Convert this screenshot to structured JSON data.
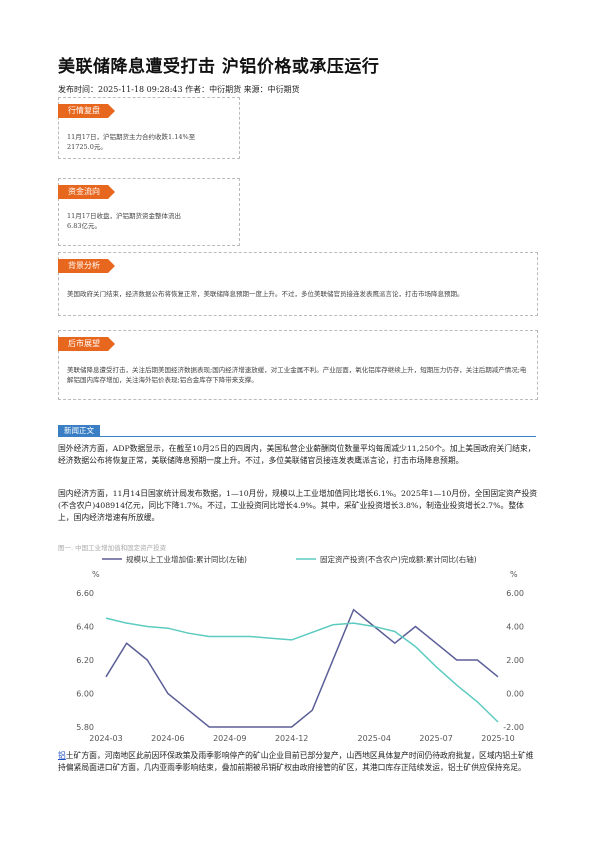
{
  "header": {
    "title": "美联储降息遭受打击 沪铝价格或承压运行",
    "meta": "发布时间：2025-11-18 09:28:43 作者：中衍期货 来源：中衍期货"
  },
  "sections": [
    {
      "tag": "行情复盘",
      "text": "11月17日，沪铝期货主力合约收跌1.14%至21725.0元。"
    },
    {
      "tag": "资金流向",
      "text": "11月17日收盘，沪铝期货资金整体流出6.83亿元。"
    },
    {
      "tag": "背景分析",
      "text": "美国政府关门结束，经济数据公布将恢复正常，美联储降息预期一度上升。不过，多位美联储官员接连发表鹰派言论，打击市场降息预期。"
    },
    {
      "tag": "后市展望",
      "text": "美联储降息遭受打击，关注后期美国经济数据表现;国内经济增速放缓，对工业金属不利。产业层面，氧化铝库存继续上升，短期压力仍存，关注后期减产情况;电解铝国内库存增加，关注海外铝价表现;铝合金库存下降带来支撑。"
    }
  ],
  "news": {
    "tag": "新闻正文",
    "p1": "国外经济方面，ADP数据显示，在截至10月25日的四周内，美国私营企业薪酬岗位数量平均每周减少11,250个。加上美国政府关门结束，经济数据公布将恢复正常，美联储降息预期一度上升。不过，多位美联储官员接连发表鹰派言论，打击市场降息预期。",
    "p2": "国内经济方面，11月14日国家统计局发布数据，1—10月份，规模以上工业增加值同比增长6.1%。2025年1—10月份，全国固定资产投资(不含农户)408914亿元，同比下降1.7%。不过，工业投资同比增长4.9%。其中，采矿业投资增长3.8%，制造业投资增长2.7%。整体上，国内经济增速有所放缓。",
    "chart_caption": "图一. 中国工业增加值和固定资产投资",
    "p3_link": "铝",
    "p3": "土矿方面，河南地区此前因环保政策及雨季影响停产的矿山企业目前已部分复产，山西地区具体复产时间仍待政府批复，区域内铝土矿维持偏紧局面进口矿方面，几内亚雨季影响结束，叠加前期被吊销矿权由政府接管的矿区，其港口库存正陆续发运，铝土矿供应保持充足。"
  },
  "chart_data": {
    "type": "line",
    "title": "",
    "x": [
      "2024-03",
      "2024-04",
      "2024-05",
      "2024-06",
      "2024-07",
      "2024-08",
      "2024-09",
      "2024-10",
      "2024-11",
      "2024-12",
      "2025-01",
      "2025-02",
      "2025-03",
      "2025-04",
      "2025-05",
      "2025-06",
      "2025-07",
      "2025-08",
      "2025-09",
      "2025-10"
    ],
    "x_ticks": [
      "2024-03",
      "2024-06",
      "2024-09",
      "2024-12",
      "2025-04",
      "2025-07",
      "2025-10"
    ],
    "series": [
      {
        "name": "规模以上工业增加值:累计同比(左轴)",
        "axis": "left",
        "color": "#5b5e97",
        "values": [
          6.1,
          6.3,
          6.2,
          6.0,
          5.9,
          5.8,
          5.8,
          5.8,
          5.8,
          5.8,
          5.9,
          null,
          6.5,
          6.4,
          6.3,
          6.4,
          6.3,
          6.2,
          6.2,
          6.1
        ]
      },
      {
        "name": "固定资产投资(不含农户)完成额:累计同比(右轴)",
        "axis": "right",
        "color": "#5ccbc0",
        "values": [
          4.5,
          4.2,
          4.0,
          3.9,
          3.6,
          3.4,
          3.4,
          3.4,
          3.3,
          3.2,
          null,
          4.1,
          4.2,
          4.0,
          3.7,
          2.8,
          1.6,
          0.5,
          -0.5,
          -1.7
        ]
      }
    ],
    "left_axis": {
      "unit": "%",
      "ylim": [
        5.8,
        6.6
      ],
      "ticks": [
        "5.80",
        "6.00",
        "6.20",
        "6.40",
        "6.60"
      ]
    },
    "right_axis": {
      "unit": "%",
      "ylim": [
        -2.0,
        6.0
      ],
      "ticks": [
        "-2.00",
        "0.00",
        "2.00",
        "4.00",
        "6.00"
      ]
    },
    "legend": "top",
    "grid": false
  }
}
